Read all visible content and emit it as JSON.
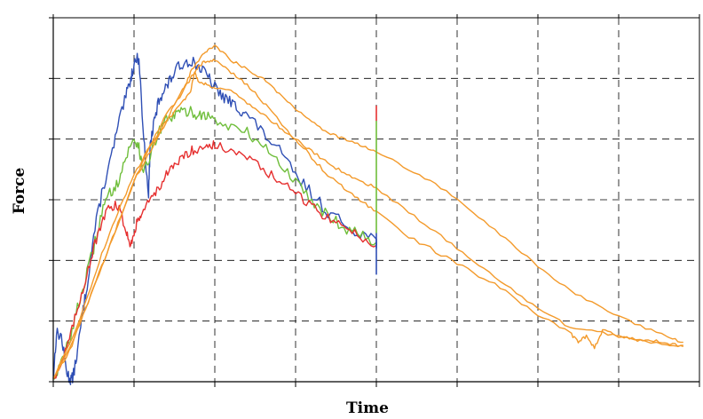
{
  "chart_data": {
    "type": "line",
    "title": "",
    "xlabel": "Time",
    "ylabel": "Force",
    "xlim": [
      0,
      8
    ],
    "ylim": [
      0,
      6
    ],
    "grid": true,
    "tick_labels": false,
    "series": [
      {
        "color": "#2f4fb5",
        "x": [
          0,
          0.04,
          0.1,
          0.16,
          0.2,
          0.24,
          0.3,
          0.36,
          0.42,
          0.5,
          0.6,
          0.7,
          0.8,
          0.9,
          0.96,
          1.0,
          1.06,
          1.12,
          1.18,
          1.2,
          1.24,
          1.3,
          1.36,
          1.42,
          1.5,
          1.6,
          1.7,
          1.8,
          1.9,
          2.0,
          2.1,
          2.2,
          2.3,
          2.4,
          2.6,
          2.8,
          3.0,
          3.2,
          3.4,
          3.6,
          3.8,
          4.0
        ],
        "y": [
          0.05,
          0.8,
          0.75,
          0.2,
          0.05,
          0.05,
          0.5,
          1.1,
          1.6,
          2.4,
          3.1,
          3.6,
          4.2,
          4.7,
          5.0,
          5.25,
          5.35,
          4.0,
          3.1,
          3.9,
          4.2,
          4.6,
          4.8,
          4.9,
          5.1,
          5.25,
          5.3,
          5.2,
          5.05,
          4.85,
          4.7,
          4.6,
          4.5,
          4.4,
          4.1,
          3.8,
          3.4,
          3.1,
          2.8,
          2.6,
          2.45,
          2.35
        ]
      },
      {
        "color": "#6fbe3b",
        "x": [
          0,
          0.1,
          0.2,
          0.3,
          0.4,
          0.5,
          0.6,
          0.7,
          0.8,
          0.9,
          1.0,
          1.06,
          1.1,
          1.2,
          1.3,
          1.4,
          1.5,
          1.6,
          1.7,
          1.8,
          1.9,
          2.0,
          2.2,
          2.4,
          2.6,
          2.8,
          3.0,
          3.2,
          3.4,
          3.6,
          3.8,
          4.0
        ],
        "y": [
          0.05,
          0.3,
          0.7,
          1.2,
          1.7,
          2.2,
          2.8,
          3.1,
          3.3,
          3.7,
          4.0,
          3.9,
          3.5,
          3.7,
          4.1,
          4.3,
          4.4,
          4.45,
          4.45,
          4.4,
          4.4,
          4.3,
          4.2,
          4.1,
          3.9,
          3.6,
          3.3,
          3.0,
          2.75,
          2.55,
          2.45,
          2.3
        ]
      },
      {
        "color": "#e63030",
        "x": [
          0,
          0.1,
          0.2,
          0.3,
          0.4,
          0.5,
          0.6,
          0.7,
          0.8,
          0.9,
          0.95,
          1.0,
          1.05,
          1.1,
          1.2,
          1.3,
          1.4,
          1.5,
          1.6,
          1.7,
          1.8,
          1.9,
          2.0,
          2.2,
          2.4,
          2.6,
          2.8,
          3.0,
          3.2,
          3.4,
          3.6,
          3.8,
          4.0
        ],
        "y": [
          0.05,
          0.3,
          0.7,
          1.2,
          1.7,
          2.2,
          2.6,
          2.9,
          2.9,
          2.5,
          2.3,
          2.4,
          2.7,
          2.8,
          3.0,
          3.2,
          3.4,
          3.55,
          3.7,
          3.8,
          3.85,
          3.9,
          3.9,
          3.8,
          3.7,
          3.5,
          3.3,
          3.1,
          2.9,
          2.7,
          2.55,
          2.4,
          2.25
        ]
      },
      {
        "color": "#f39a2b",
        "x": [
          0,
          0.2,
          0.4,
          0.6,
          0.8,
          1.0,
          1.2,
          1.4,
          1.6,
          1.7,
          1.75,
          1.8,
          1.9,
          2.0,
          2.2,
          2.4,
          2.6,
          2.8,
          3.0,
          3.2,
          3.4,
          3.6,
          3.8,
          4.0,
          4.4,
          4.8,
          5.2,
          5.6,
          6.0,
          6.4,
          6.8,
          7.2,
          7.6,
          7.8
        ],
        "y": [
          0.05,
          0.6,
          1.3,
          2.1,
          2.8,
          3.4,
          3.9,
          4.3,
          4.6,
          4.8,
          5.1,
          4.95,
          4.9,
          4.85,
          4.8,
          4.6,
          4.4,
          4.2,
          4.0,
          3.8,
          3.6,
          3.45,
          3.3,
          3.2,
          2.8,
          2.4,
          2.0,
          1.6,
          1.2,
          0.9,
          0.8,
          0.7,
          0.62,
          0.58
        ]
      },
      {
        "color": "#f39a2b",
        "x": [
          0,
          0.2,
          0.4,
          0.6,
          0.8,
          1.0,
          1.2,
          1.4,
          1.6,
          1.7,
          1.8,
          1.9,
          2.0,
          2.2,
          2.4,
          2.6,
          2.8,
          3.0,
          3.2,
          3.4,
          3.6,
          3.8,
          4.0,
          4.4,
          4.8,
          5.2,
          5.6,
          6.0,
          6.4,
          6.8,
          7.2,
          7.6,
          7.8
        ],
        "y": [
          0.05,
          0.55,
          1.2,
          1.9,
          2.6,
          3.3,
          3.9,
          4.4,
          4.75,
          5.1,
          5.3,
          5.45,
          5.55,
          5.3,
          5.15,
          5.0,
          4.75,
          4.5,
          4.3,
          4.1,
          4.0,
          3.9,
          3.8,
          3.5,
          3.2,
          2.8,
          2.35,
          1.9,
          1.5,
          1.2,
          0.95,
          0.75,
          0.65
        ]
      },
      {
        "color": "#f39a2b",
        "x": [
          0,
          0.2,
          0.4,
          0.6,
          0.8,
          1.0,
          1.2,
          1.4,
          1.6,
          1.7,
          1.8,
          1.9,
          2.0,
          2.2,
          2.4,
          2.6,
          2.8,
          3.0,
          3.2,
          3.4,
          3.6,
          3.8,
          4.0,
          4.4,
          4.8,
          5.2,
          5.6,
          6.0,
          6.4,
          6.5,
          6.6,
          6.7,
          6.8,
          7.0,
          7.2,
          7.4,
          7.6,
          7.8
        ],
        "y": [
          0.05,
          0.5,
          1.2,
          1.9,
          2.6,
          3.3,
          3.8,
          4.3,
          4.8,
          5.0,
          5.2,
          5.3,
          5.3,
          5.1,
          4.9,
          4.6,
          4.3,
          4.0,
          3.7,
          3.4,
          3.2,
          3.0,
          2.8,
          2.4,
          2.1,
          1.8,
          1.5,
          1.1,
          0.8,
          0.65,
          0.75,
          0.55,
          0.85,
          0.75,
          0.7,
          0.68,
          0.62,
          0.6
        ]
      }
    ]
  }
}
